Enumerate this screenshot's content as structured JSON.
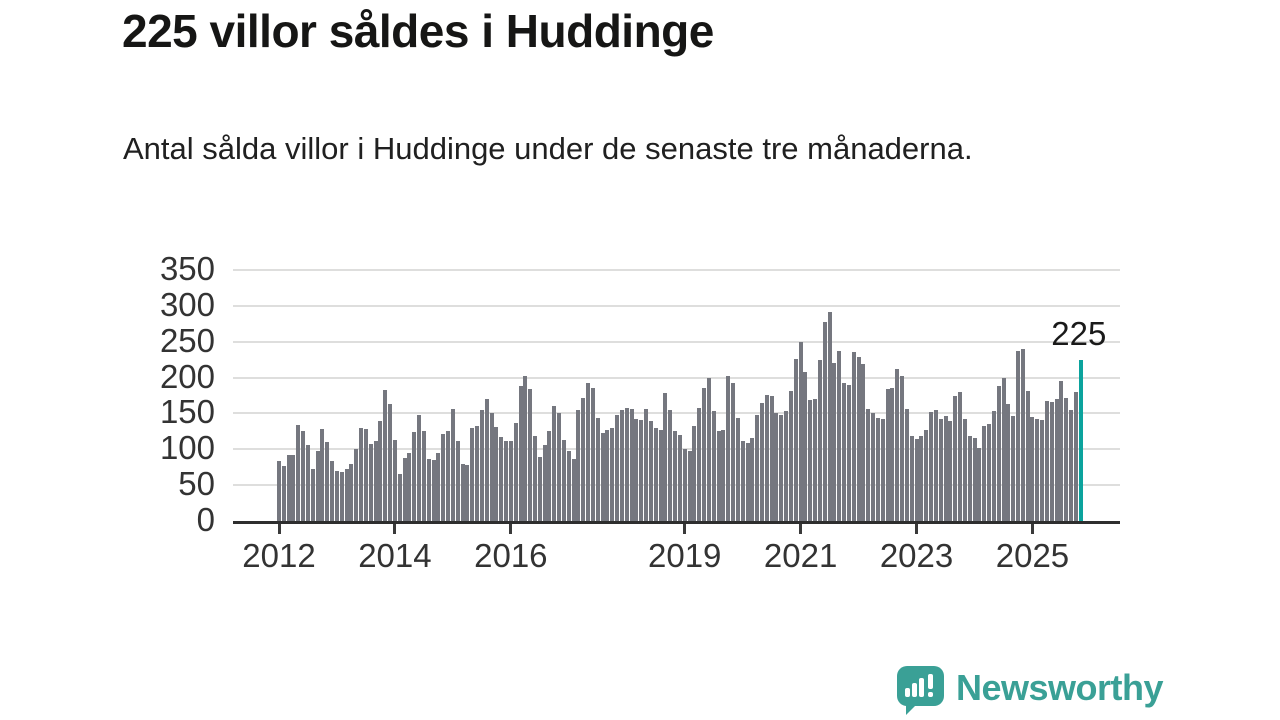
{
  "header": {
    "title": "225 villor såldes i Huddinge",
    "subtitle": "Antal sålda villor i Huddinge under de senaste tre månaderna."
  },
  "annotation": {
    "latest_value": "225"
  },
  "footer": {
    "brand": "Newsworthy"
  },
  "colors": {
    "bar": "#75777f",
    "highlight": "#0ba39d",
    "grid": "#dededd",
    "axis": "#2e2e2e",
    "axis_text": "#333333",
    "title_text": "#161615",
    "brand": "#3aa096"
  },
  "chart_data": {
    "type": "bar",
    "title": "225 villor såldes i Huddinge",
    "subtitle": "Antal sålda villor i Huddinge under de senaste tre månaderna.",
    "unit": "antal sålda villor (rullande tre månader)",
    "frequency": "monthly",
    "x_start": "2012-01",
    "x_end": "2025-11",
    "ylim": [
      0,
      350
    ],
    "y_ticks": [
      0,
      50,
      100,
      150,
      200,
      250,
      300,
      350
    ],
    "x_tick_years": [
      2012,
      2014,
      2016,
      2019,
      2021,
      2023,
      2025
    ],
    "grid": "horizontal",
    "legend": "none",
    "highlight_index": 166,
    "highlight_value": 225,
    "values": [
      84,
      76,
      92,
      92,
      134,
      125,
      106,
      73,
      98,
      128,
      110,
      83,
      70,
      68,
      73,
      80,
      100,
      130,
      128,
      107,
      112,
      140,
      182,
      163,
      113,
      66,
      88,
      95,
      124,
      148,
      126,
      86,
      85,
      95,
      122,
      125,
      156,
      112,
      80,
      78,
      130,
      133,
      155,
      170,
      150,
      131,
      117,
      111,
      111,
      137,
      188,
      202,
      184,
      119,
      89,
      106,
      125,
      160,
      150,
      113,
      97,
      86,
      155,
      172,
      193,
      186,
      144,
      123,
      127,
      130,
      148,
      155,
      158,
      156,
      142,
      141,
      156,
      140,
      130,
      127,
      179,
      155,
      125,
      120,
      100,
      97,
      132,
      158,
      186,
      199,
      153,
      125,
      127,
      202,
      192,
      144,
      111,
      109,
      116,
      148,
      165,
      176,
      175,
      151,
      148,
      153,
      181,
      226,
      249,
      208,
      169,
      170,
      225,
      278,
      292,
      221,
      237,
      193,
      189,
      235,
      228,
      219,
      156,
      151,
      144,
      142,
      184,
      186,
      212,
      202,
      156,
      119,
      114,
      119,
      127,
      152,
      155,
      142,
      147,
      139,
      175,
      180,
      142,
      118,
      116,
      102,
      132,
      135,
      153,
      188,
      199,
      163,
      147,
      237,
      240,
      181,
      145,
      142,
      141,
      167,
      166,
      170,
      195,
      172,
      155,
      180,
      225
    ]
  }
}
